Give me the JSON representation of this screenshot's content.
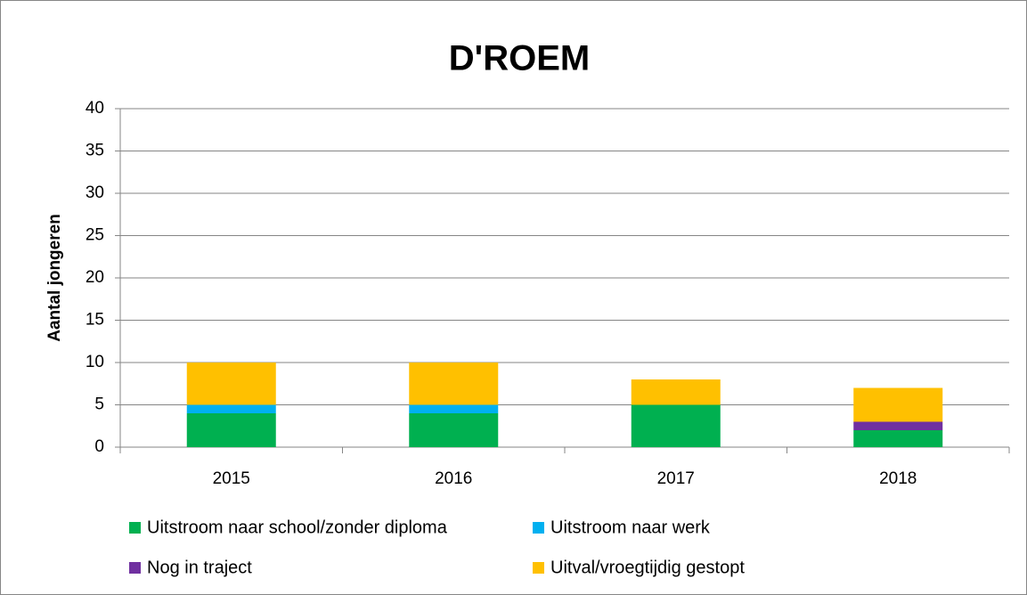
{
  "chart_data": {
    "type": "stacked_bar",
    "title": "D'ROEM",
    "y_label": "Aantal jongeren",
    "categories": [
      "2015",
      "2016",
      "2017",
      "2018"
    ],
    "series": [
      {
        "name": "Uitstroom naar school/zonder diploma",
        "color": "#00b050",
        "values": [
          4,
          4,
          5,
          2
        ]
      },
      {
        "name": "Uitstroom naar werk",
        "color": "#00b0f0",
        "values": [
          1,
          1,
          0,
          0
        ]
      },
      {
        "name": "Nog in traject",
        "color": "#7030a0",
        "values": [
          0,
          0,
          0,
          1
        ]
      },
      {
        "name": "Uitval/vroegtijdig gestopt",
        "color": "#ffc000",
        "values": [
          5,
          5,
          3,
          4
        ]
      }
    ],
    "ylim": [
      0,
      40
    ],
    "yticks": [
      0,
      5,
      10,
      15,
      20,
      25,
      30,
      35,
      40
    ],
    "grid": true
  }
}
